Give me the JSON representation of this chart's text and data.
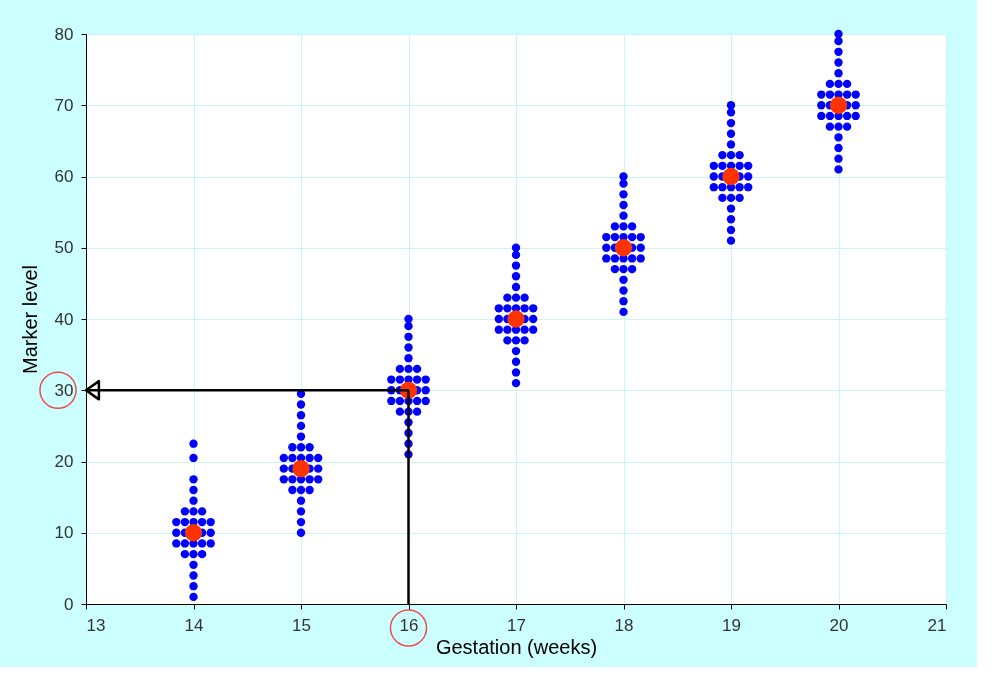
{
  "chart_data": {
    "type": "scatter",
    "xlabel": "Gestation (weeks)",
    "ylabel": "Marker level",
    "xlim": [
      13,
      21
    ],
    "xticks": [
      13,
      14,
      15,
      16,
      17,
      18,
      19,
      20,
      21
    ],
    "ylim": [
      0,
      80
    ],
    "yticks": [
      0,
      10,
      20,
      30,
      40,
      50,
      60,
      70,
      80
    ],
    "grid": true,
    "marker": "circle",
    "series": [
      {
        "color": "#0000ff",
        "x": [
          14,
          14,
          14,
          14,
          14,
          14,
          14,
          14,
          14,
          14,
          14,
          14,
          14,
          13.92,
          13.92,
          13.92,
          13.92,
          13.92,
          14.08,
          14.08,
          14.08,
          14.08,
          14.08,
          13.84,
          13.84,
          13.84,
          14.16,
          14.16,
          14.16,
          15,
          15,
          15,
          15,
          15,
          15,
          15,
          15,
          15,
          15,
          15,
          15,
          15,
          14.92,
          14.92,
          14.92,
          14.92,
          14.92,
          15.08,
          15.08,
          15.08,
          15.08,
          15.08,
          14.84,
          14.84,
          14.84,
          15.16,
          15.16,
          15.16,
          16,
          16,
          16,
          16,
          16,
          16,
          16,
          16,
          16,
          16,
          16,
          16,
          16,
          15.92,
          15.92,
          15.92,
          15.92,
          15.92,
          16.08,
          16.08,
          16.08,
          16.08,
          16.08,
          15.84,
          15.84,
          15.84,
          16.16,
          16.16,
          16.16,
          17,
          17,
          17,
          17,
          17,
          17,
          17,
          17,
          17,
          17,
          17,
          17,
          17,
          16.92,
          16.92,
          16.92,
          16.92,
          16.92,
          17.08,
          17.08,
          17.08,
          17.08,
          17.08,
          16.84,
          16.84,
          16.84,
          17.16,
          17.16,
          17.16,
          18,
          18,
          18,
          18,
          18,
          18,
          18,
          18,
          18,
          18,
          18,
          18,
          18,
          17.92,
          17.92,
          17.92,
          17.92,
          17.92,
          18.08,
          18.08,
          18.08,
          18.08,
          18.08,
          17.84,
          17.84,
          17.84,
          18.16,
          18.16,
          18.16,
          19,
          19,
          19,
          19,
          19,
          19,
          19,
          19,
          19,
          19,
          19,
          19,
          19,
          18.92,
          18.92,
          18.92,
          18.92,
          18.92,
          19.08,
          19.08,
          19.08,
          19.08,
          19.08,
          18.84,
          18.84,
          18.84,
          19.16,
          19.16,
          19.16,
          20,
          20,
          20,
          20,
          20,
          20,
          20,
          20,
          20,
          20,
          20,
          20,
          20,
          19.92,
          19.92,
          19.92,
          19.92,
          19.92,
          20.08,
          20.08,
          20.08,
          20.08,
          20.08,
          19.84,
          19.84,
          19.84,
          20.16,
          20.16,
          20.16
        ],
        "values": [
          1,
          2.5,
          4,
          5.5,
          7,
          8.5,
          11.5,
          13,
          14.5,
          16,
          17.5,
          20.5,
          22.5,
          7,
          8.5,
          10,
          11.5,
          13,
          7,
          8.5,
          10,
          11.5,
          13,
          8.5,
          10,
          11.5,
          8.5,
          10,
          11.5,
          10,
          11.5,
          13,
          14.5,
          16,
          17.5,
          20.5,
          22,
          23.5,
          25,
          26.5,
          28,
          29.5,
          16,
          17.5,
          19,
          20.5,
          22,
          16,
          17.5,
          19,
          20.5,
          22,
          17.5,
          19,
          20.5,
          17.5,
          19,
          20.5,
          21,
          22.5,
          24,
          25.5,
          27,
          28.5,
          31.5,
          33,
          34.5,
          36,
          37.5,
          39,
          40,
          27,
          28.5,
          30,
          31.5,
          33,
          27,
          28.5,
          30,
          31.5,
          33,
          28.5,
          30,
          31.5,
          28.5,
          30,
          31.5,
          31,
          32.5,
          34,
          35.5,
          37,
          38.5,
          41.5,
          43,
          44.5,
          46,
          47.5,
          49,
          50,
          37,
          38.5,
          40,
          41.5,
          43,
          37,
          38.5,
          40,
          41.5,
          43,
          38.5,
          40,
          41.5,
          38.5,
          40,
          41.5,
          41,
          42.5,
          44,
          45.5,
          47,
          48.5,
          51.5,
          53,
          54.5,
          56,
          57.5,
          59,
          60,
          47,
          48.5,
          50,
          51.5,
          53,
          47,
          48.5,
          50,
          51.5,
          53,
          48.5,
          50,
          51.5,
          48.5,
          50,
          51.5,
          51,
          52.5,
          54,
          55.5,
          57,
          58.5,
          61.5,
          63,
          64.5,
          66,
          67.5,
          69,
          70,
          57,
          58.5,
          60,
          61.5,
          63,
          57,
          58.5,
          60,
          61.5,
          63,
          58.5,
          60,
          61.5,
          58.5,
          60,
          61.5,
          61,
          62.5,
          64,
          65.5,
          67,
          68.5,
          71.5,
          73,
          74.5,
          76,
          77.5,
          79,
          80,
          67,
          68.5,
          70,
          71.5,
          73,
          67,
          68.5,
          70,
          71.5,
          73,
          68.5,
          70,
          71.5,
          68.5,
          70,
          71.5
        ]
      },
      {
        "color": "#ff3300",
        "x": [
          14,
          15,
          16,
          17,
          18,
          19,
          20
        ],
        "values": [
          10,
          19,
          30,
          40,
          50,
          60,
          70
        ]
      }
    ],
    "ref_lines": [
      {
        "axis": "x",
        "value": 16,
        "color": "#000000"
      },
      {
        "axis": "y",
        "value": 30,
        "color": "#000000"
      }
    ]
  }
}
